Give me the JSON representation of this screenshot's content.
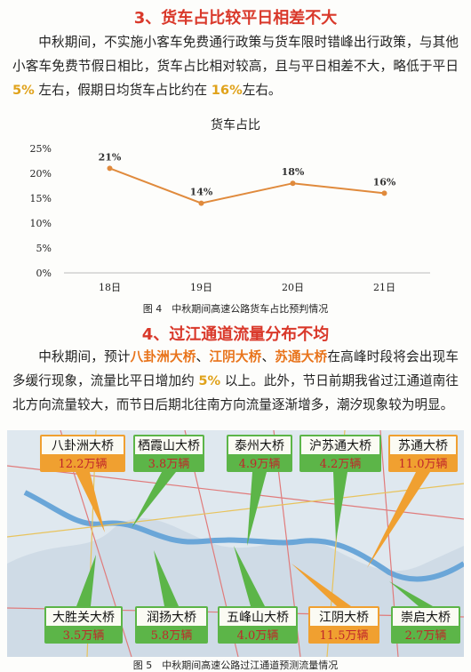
{
  "section3": {
    "heading": "3、货车占比较平日相差不大",
    "paragraph": [
      "中秋期间，不实施小客车免费通行政策与货车限时错峰出行政策，与其他小客车免费节假日相比，货车占比相对较高，且与平日相差不大，略低于平日 ",
      "5%",
      " 左右，假期日均货车占比约在 ",
      "16%",
      "左右。"
    ]
  },
  "chart_data": {
    "type": "line",
    "title": "货车占比",
    "categories": [
      "18日",
      "19日",
      "20日",
      "21日"
    ],
    "values": [
      21,
      14,
      18,
      16
    ],
    "value_labels": [
      "21%",
      "14%",
      "18%",
      "16%"
    ],
    "color": "#e08a3c",
    "ylim": [
      0,
      25
    ],
    "yticks": [
      {
        "value": 0,
        "label": "0%"
      },
      {
        "value": 5,
        "label": "5%"
      },
      {
        "value": 10,
        "label": "10%"
      },
      {
        "value": 15,
        "label": "15%"
      },
      {
        "value": 20,
        "label": "20%"
      },
      {
        "value": 25,
        "label": "25%"
      }
    ],
    "grid": false,
    "caption": "图 4　中秋期间高速公路货车占比预判情况"
  },
  "section4": {
    "heading": "4、过江通道流量分布不均",
    "paragraph": [
      "中秋期间，预计",
      "八卦洲大桥",
      "、",
      "江阴大桥",
      "、",
      "苏通大桥",
      "在高峰时段将会出现车多缓行现象，流量比平日增加约 ",
      "5%",
      " 以上。此外，节日前期我省过江通道南往北方向流量较大，而节日后期北往南方向流量逐渐增多，潮汐现象较为明显。"
    ]
  },
  "map": {
    "caption": "图 5　中秋期间高速公路过江通道预测流量情况",
    "bridges": [
      {
        "name": "八卦洲大桥",
        "flow": "12.2万辆",
        "color": "#f0a030"
      },
      {
        "name": "栖霞山大桥",
        "flow": "3.8万辆",
        "color": "#5cb548"
      },
      {
        "name": "泰州大桥",
        "flow": "4.9万辆",
        "color": "#5cb548"
      },
      {
        "name": "沪苏通大桥",
        "flow": "4.2万辆",
        "color": "#5cb548"
      },
      {
        "name": "苏通大桥",
        "flow": "11.0万辆",
        "color": "#f0a030"
      },
      {
        "name": "大胜关大桥",
        "flow": "3.5万辆",
        "color": "#5cb548"
      },
      {
        "name": "润扬大桥",
        "flow": "5.8万辆",
        "color": "#5cb548"
      },
      {
        "name": "五峰山大桥",
        "flow": "4.0万辆",
        "color": "#5cb548"
      },
      {
        "name": "江阴大桥",
        "flow": "11.5万辆",
        "color": "#f0a030"
      },
      {
        "name": "崇启大桥",
        "flow": "2.7万辆",
        "color": "#5cb548"
      }
    ]
  }
}
